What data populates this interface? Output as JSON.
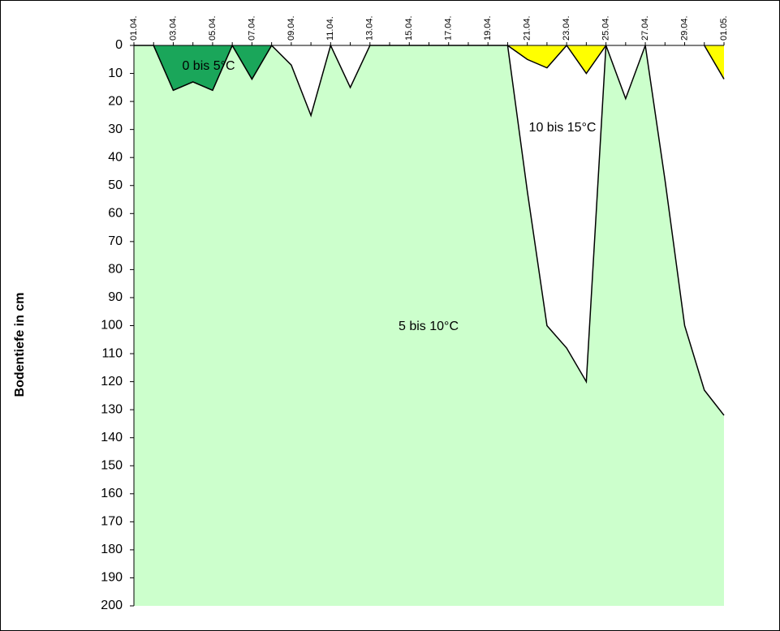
{
  "chart_data": {
    "type": "area",
    "y_title": "Bodentiefe in cm",
    "categories": [
      "01.04.",
      null,
      "03.04.",
      null,
      "05.04.",
      null,
      "07.04.",
      null,
      "09.04.",
      null,
      "11.04.",
      null,
      "13.04.",
      null,
      "15.04.",
      null,
      "17.04.",
      null,
      "19.04.",
      null,
      "21.04.",
      null,
      "23.04.",
      null,
      "25.04.",
      null,
      "27.04.",
      null,
      "29.04.",
      null,
      "01.05."
    ],
    "ylim": [
      0,
      200
    ],
    "y_inverted": true,
    "yticks": [
      0,
      10,
      20,
      30,
      40,
      50,
      60,
      70,
      80,
      90,
      100,
      110,
      120,
      130,
      140,
      150,
      160,
      170,
      180,
      190,
      200
    ],
    "annotations": [
      "0 bis 5°C",
      "5 bis 10°C",
      "10 bis 15°C"
    ],
    "series": [
      {
        "color": "#ccffcc",
        "fill": "below",
        "values": [
          0,
          0,
          16,
          13,
          16,
          0,
          12,
          0,
          7,
          25,
          0,
          15,
          0,
          0,
          0,
          0,
          0,
          0,
          0,
          0,
          52,
          100,
          108,
          120,
          0,
          19,
          0,
          48,
          100,
          123,
          132
        ]
      },
      {
        "color": "#1aa65a",
        "fill": "above",
        "values": [
          null,
          0,
          16,
          13,
          16,
          0,
          12,
          0,
          null,
          null,
          null,
          null,
          null,
          null,
          null,
          null,
          null,
          null,
          null,
          null,
          null,
          null,
          null,
          null,
          null,
          null,
          null,
          null,
          null,
          null,
          null
        ]
      },
      {
        "color": "#ffff00",
        "fill": "above",
        "values": [
          null,
          null,
          null,
          null,
          null,
          null,
          null,
          null,
          null,
          null,
          null,
          null,
          null,
          null,
          null,
          null,
          null,
          null,
          null,
          0,
          5,
          8,
          0,
          10,
          0,
          null,
          null,
          null,
          null,
          0,
          12
        ]
      }
    ]
  }
}
